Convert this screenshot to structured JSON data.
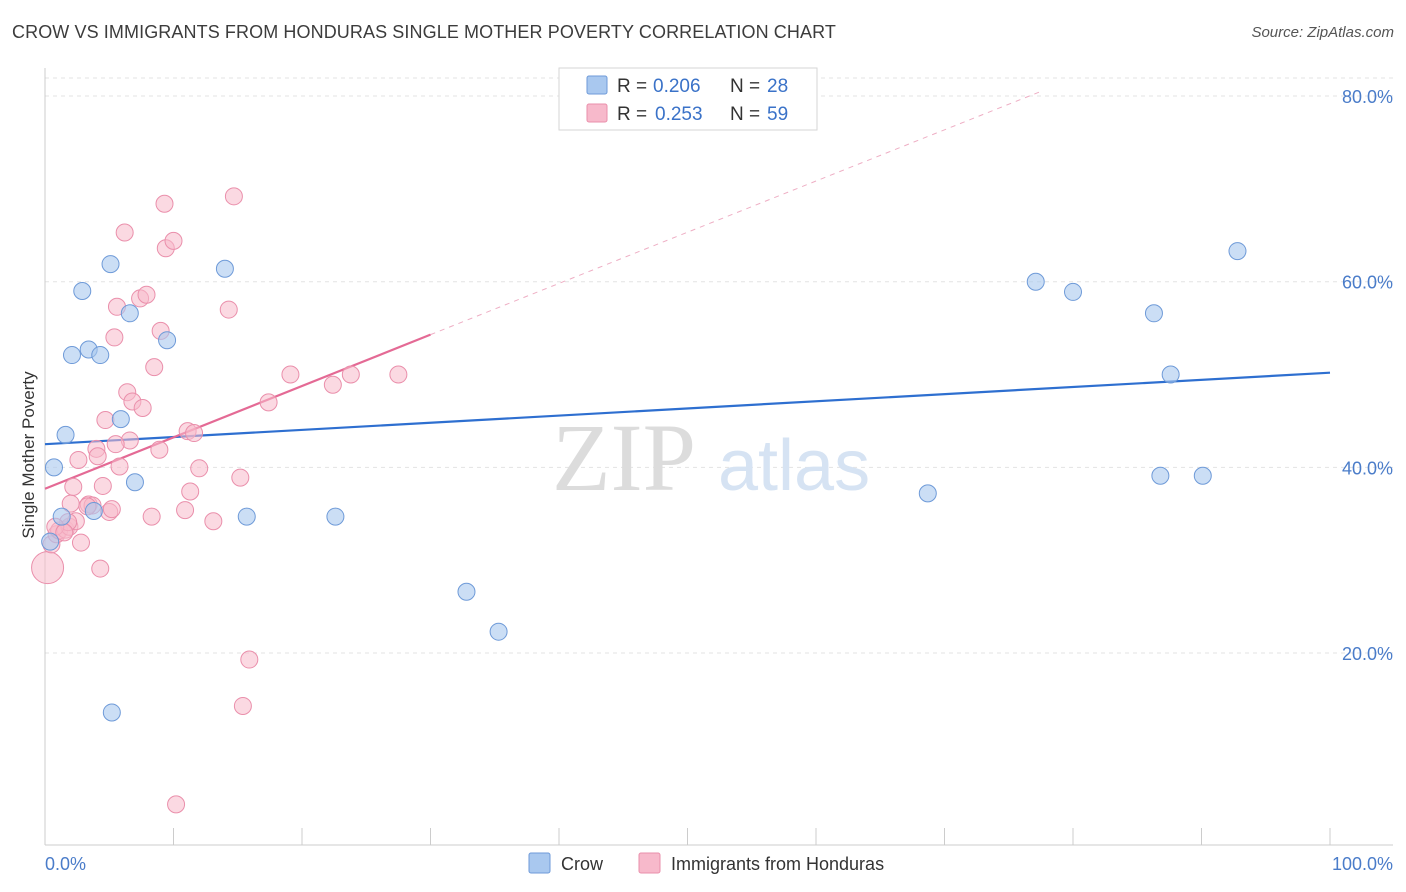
{
  "title": "CROW VS IMMIGRANTS FROM HONDURAS SINGLE MOTHER POVERTY CORRELATION CHART",
  "source": "Source: ZipAtlas.com",
  "colors": {
    "crow_fill": "#a9c8ef",
    "crow_stroke": "#6e9ad8",
    "crow_line": "#2e6fd0",
    "honduras_fill": "#f7b9cb",
    "honduras_stroke": "#ea8fab",
    "honduras_line": "#e46a95",
    "grid": "#e3e3e3",
    "axis_text": "#4a7cc9"
  },
  "legend": {
    "crow": {
      "r_label": "R = ",
      "r_value": "0.206",
      "n_label": "N = ",
      "n_value": "28"
    },
    "honduras": {
      "r_label": "R = ",
      "r_value": "0.253",
      "n_label": "N = ",
      "n_value": "59"
    }
  },
  "bottom_legend": {
    "crow": "Crow",
    "honduras": "Immigrants from Honduras"
  },
  "watermark": {
    "zip": "ZIP",
    "atlas": "atlas"
  },
  "chart_data": {
    "type": "scatter",
    "title": "CROW VS IMMIGRANTS FROM HONDURAS SINGLE MOTHER POVERTY CORRELATION CHART",
    "xlabel": "",
    "ylabel": "Single Mother Poverty",
    "xlim": [
      0,
      100
    ],
    "ylim": [
      0,
      85
    ],
    "x_tick_labels": [
      "0.0%",
      "100.0%"
    ],
    "y_ticks": [
      20,
      40,
      60,
      80
    ],
    "y_tick_labels": [
      "20.0%",
      "40.0%",
      "60.0%",
      "80.0%"
    ],
    "grid": true,
    "legend_position": "top-center",
    "series": [
      {
        "name": "Crow",
        "r": 0.206,
        "n": 28,
        "trend": {
          "x": [
            0,
            100
          ],
          "y": [
            42.5,
            50.2
          ]
        },
        "points": [
          [
            0.4,
            32.0
          ],
          [
            0.7,
            40.0
          ],
          [
            1.3,
            34.7
          ],
          [
            1.6,
            43.5
          ],
          [
            2.1,
            52.1
          ],
          [
            2.9,
            59.0
          ],
          [
            3.4,
            52.7
          ],
          [
            4.3,
            52.1
          ],
          [
            5.1,
            61.9
          ],
          [
            5.2,
            13.6
          ],
          [
            5.9,
            45.2
          ],
          [
            6.6,
            56.6
          ],
          [
            7.0,
            38.4
          ],
          [
            9.5,
            53.7
          ],
          [
            14.0,
            61.4
          ],
          [
            15.7,
            34.7
          ],
          [
            22.6,
            34.7
          ],
          [
            32.8,
            26.6
          ],
          [
            35.3,
            22.3
          ],
          [
            68.7,
            37.2
          ],
          [
            77.1,
            60.0
          ],
          [
            80.0,
            58.9
          ],
          [
            86.8,
            39.1
          ],
          [
            86.3,
            56.6
          ],
          [
            87.6,
            50.0
          ],
          [
            90.1,
            39.1
          ],
          [
            92.8,
            63.3
          ],
          [
            3.8,
            35.3
          ]
        ]
      },
      {
        "name": "Immigrants from Honduras",
        "r": 0.253,
        "n": 59,
        "trend": {
          "x": [
            0,
            30
          ],
          "y": [
            37.7,
            54.3
          ]
        },
        "trend_extension": {
          "x": [
            30,
            77.5
          ],
          "y": [
            54.3,
            80.5
          ]
        },
        "points": [
          [
            0.2,
            29.2
          ],
          [
            0.5,
            31.7
          ],
          [
            0.9,
            32.8
          ],
          [
            1.1,
            33.2
          ],
          [
            1.6,
            33.3
          ],
          [
            1.9,
            33.6
          ],
          [
            2.0,
            36.1
          ],
          [
            2.4,
            34.2
          ],
          [
            2.6,
            40.8
          ],
          [
            2.8,
            31.9
          ],
          [
            3.4,
            36.0
          ],
          [
            3.7,
            35.9
          ],
          [
            4.0,
            42.0
          ],
          [
            4.1,
            41.2
          ],
          [
            4.3,
            29.1
          ],
          [
            4.5,
            38.0
          ],
          [
            4.7,
            45.1
          ],
          [
            5.0,
            35.2
          ],
          [
            5.2,
            35.5
          ],
          [
            5.4,
            54.0
          ],
          [
            5.6,
            57.3
          ],
          [
            5.8,
            40.1
          ],
          [
            6.2,
            65.3
          ],
          [
            6.4,
            48.1
          ],
          [
            6.6,
            42.9
          ],
          [
            6.8,
            47.1
          ],
          [
            7.4,
            58.2
          ],
          [
            7.6,
            46.4
          ],
          [
            7.9,
            58.6
          ],
          [
            8.3,
            34.7
          ],
          [
            8.5,
            50.8
          ],
          [
            8.9,
            41.9
          ],
          [
            9.0,
            54.7
          ],
          [
            9.3,
            68.4
          ],
          [
            9.4,
            63.6
          ],
          [
            10.0,
            64.4
          ],
          [
            10.9,
            35.4
          ],
          [
            11.1,
            43.9
          ],
          [
            11.3,
            37.4
          ],
          [
            11.6,
            43.7
          ],
          [
            12.0,
            39.9
          ],
          [
            13.1,
            34.2
          ],
          [
            14.3,
            57.0
          ],
          [
            14.7,
            69.2
          ],
          [
            15.2,
            38.9
          ],
          [
            15.4,
            14.3
          ],
          [
            15.9,
            19.3
          ],
          [
            17.4,
            47.0
          ],
          [
            19.1,
            50.0
          ],
          [
            22.4,
            48.9
          ],
          [
            23.8,
            50.0
          ],
          [
            27.5,
            50.0
          ],
          [
            10.2,
            3.7
          ],
          [
            1.8,
            34.1
          ],
          [
            3.3,
            35.8
          ],
          [
            0.8,
            33.6
          ],
          [
            1.5,
            33.0
          ],
          [
            5.5,
            42.5
          ],
          [
            2.2,
            37.9
          ]
        ]
      }
    ]
  }
}
